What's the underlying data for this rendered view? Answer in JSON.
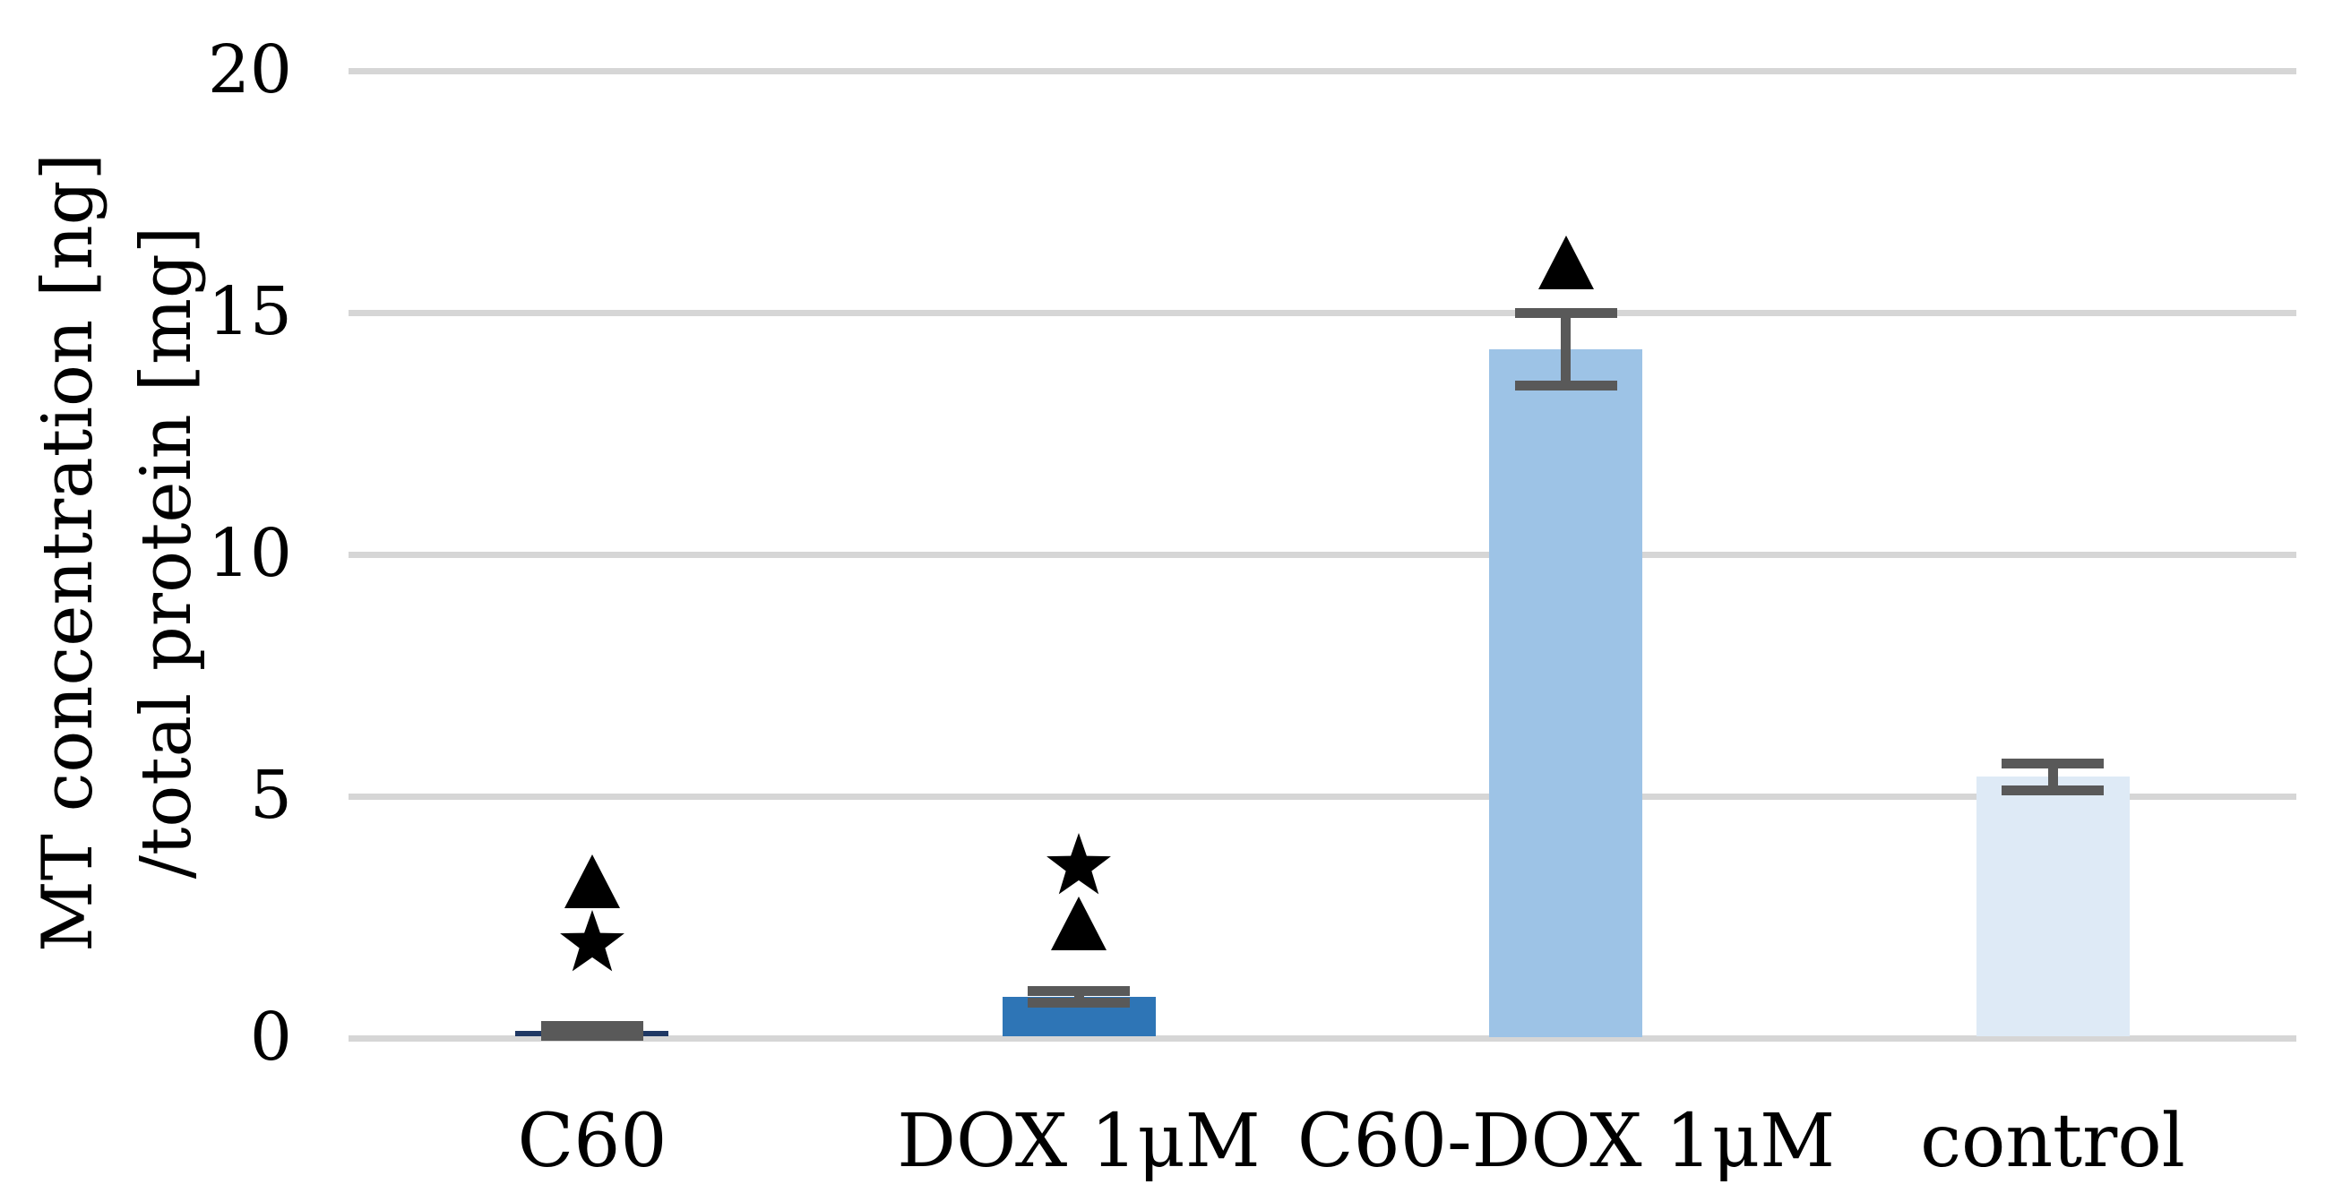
{
  "chart_data": {
    "type": "bar",
    "title": "",
    "xlabel": "",
    "ylabel_lines": [
      "MT concentration [ng]",
      "/total protein [mg]"
    ],
    "ylim": [
      0,
      20
    ],
    "yticks": [
      0,
      5,
      10,
      15,
      20
    ],
    "grid": true,
    "legend": "none",
    "categories": [
      "C60",
      "DOX 1μM",
      "C60-DOX 1μM",
      "control"
    ],
    "series": [
      {
        "name": "MT concentration / total protein",
        "values": [
          0.15,
          0.85,
          14.25,
          5.4
        ],
        "error_bars": [
          0.1,
          0.12,
          0.75,
          0.28
        ]
      }
    ],
    "bar_colors": [
      "#1F3864",
      "#2E75B6",
      "#9DC3E6",
      "#DEEAF6"
    ],
    "annotations": [
      {
        "category": "C60",
        "symbols": [
          "triangle",
          "star"
        ]
      },
      {
        "category": "DOX 1μM",
        "symbols": [
          "star",
          "triangle"
        ]
      },
      {
        "category": "C60-DOX 1μM",
        "symbols": [
          "triangle"
        ]
      },
      {
        "category": "control",
        "symbols": []
      }
    ],
    "colors": {
      "gridline": "#D6D6D6",
      "error_bar": "#595959",
      "annotation": "#000000",
      "text": "#000000",
      "background": "#FFFFFF"
    }
  }
}
